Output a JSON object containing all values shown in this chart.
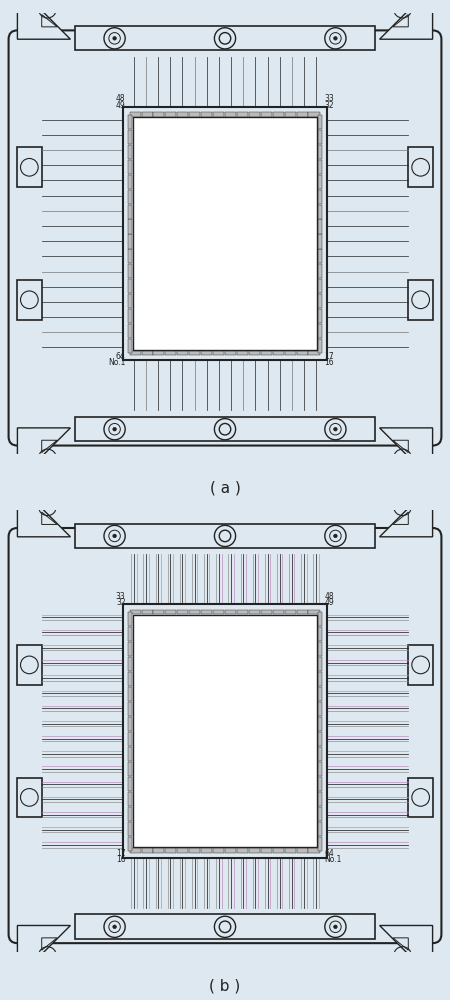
{
  "fig_width": 4.5,
  "fig_height": 10.0,
  "dpi": 100,
  "bg_color": "#dde8f0",
  "line_color": "#222222",
  "white": "#ffffff",
  "label_a": "( a )",
  "label_b": "( b )"
}
